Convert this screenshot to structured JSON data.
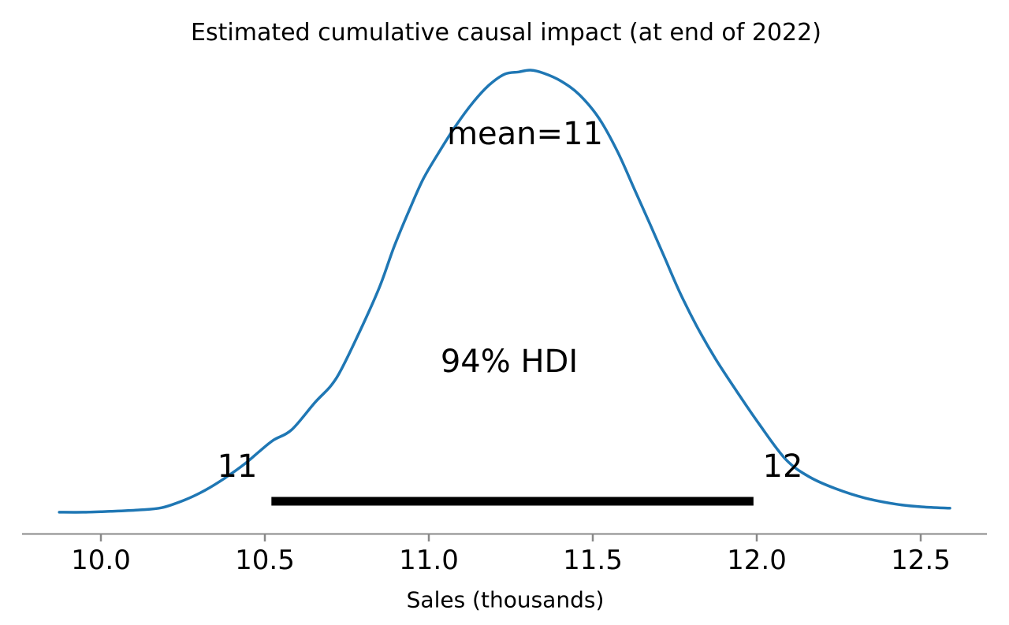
{
  "chart_data": {
    "type": "line",
    "subtype": "posterior-density-kde",
    "title": "Estimated cumulative causal impact (at end of 2022)",
    "xlabel": "Sales (thousands)",
    "ylabel": "",
    "x_ticks": [
      10.0,
      10.5,
      11.0,
      11.5,
      12.0,
      12.5
    ],
    "xlim": [
      9.76,
      12.7
    ],
    "grid": false,
    "legend": false,
    "mean": 11.3,
    "mean_label": "mean=11",
    "hdi_probability": "94%",
    "hdi_label": "94% HDI",
    "hdi_interval": [
      10.52,
      11.99
    ],
    "hdi_lower_label": "11",
    "hdi_upper_label": "12",
    "colors": {
      "curve": "#1f77b4",
      "hdi_bar": "#000000",
      "axis": "#898989",
      "text": "#000000",
      "background": "#ffffff"
    },
    "curve": [
      [
        9.873,
        0.009
      ],
      [
        9.945,
        0.009
      ],
      [
        10.029,
        0.011
      ],
      [
        10.113,
        0.014
      ],
      [
        10.185,
        0.019
      ],
      [
        10.257,
        0.037
      ],
      [
        10.317,
        0.058
      ],
      [
        10.377,
        0.085
      ],
      [
        10.438,
        0.117
      ],
      [
        10.486,
        0.147
      ],
      [
        10.527,
        0.171
      ],
      [
        10.582,
        0.194
      ],
      [
        10.654,
        0.256
      ],
      [
        10.702,
        0.293
      ],
      [
        10.738,
        0.336
      ],
      [
        10.798,
        0.428
      ],
      [
        10.851,
        0.516
      ],
      [
        10.894,
        0.604
      ],
      [
        10.942,
        0.689
      ],
      [
        10.983,
        0.756
      ],
      [
        11.031,
        0.816
      ],
      [
        11.082,
        0.875
      ],
      [
        11.135,
        0.928
      ],
      [
        11.183,
        0.966
      ],
      [
        11.231,
        0.991
      ],
      [
        11.274,
        0.996
      ],
      [
        11.31,
        1.0
      ],
      [
        11.351,
        0.993
      ],
      [
        11.404,
        0.975
      ],
      [
        11.459,
        0.945
      ],
      [
        11.519,
        0.892
      ],
      [
        11.575,
        0.818
      ],
      [
        11.627,
        0.733
      ],
      [
        11.675,
        0.654
      ],
      [
        11.719,
        0.58
      ],
      [
        11.764,
        0.504
      ],
      [
        11.817,
        0.426
      ],
      [
        11.875,
        0.352
      ],
      [
        11.94,
        0.279
      ],
      [
        12.007,
        0.207
      ],
      [
        12.089,
        0.127
      ],
      [
        12.161,
        0.088
      ],
      [
        12.24,
        0.062
      ],
      [
        12.329,
        0.041
      ],
      [
        12.425,
        0.027
      ],
      [
        12.505,
        0.021
      ],
      [
        12.589,
        0.018
      ]
    ]
  }
}
